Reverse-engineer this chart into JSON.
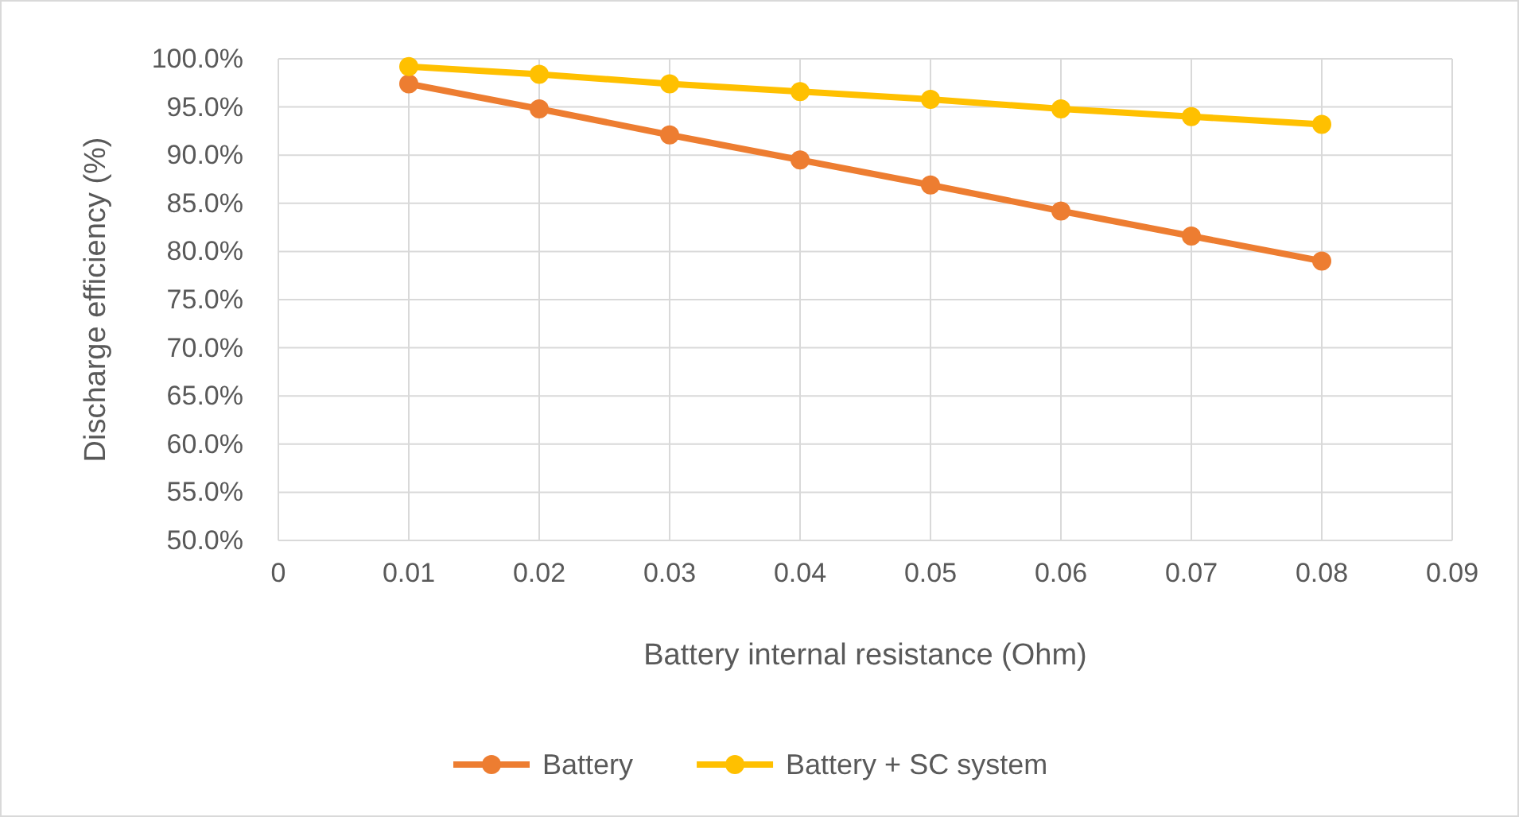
{
  "chart_data": {
    "type": "line",
    "xlabel": "Battery internal resistance (Ohm)",
    "ylabel": "Discharge efficiency (%)",
    "xlim": [
      0,
      0.09
    ],
    "xticks": [
      0,
      0.01,
      0.02,
      0.03,
      0.04,
      0.05,
      0.06,
      0.07,
      0.08,
      0.09
    ],
    "ylim": [
      50,
      100
    ],
    "yticks": [
      {
        "value": 50,
        "label": "50.0%"
      },
      {
        "value": 55,
        "label": "55.0%"
      },
      {
        "value": 60,
        "label": "60.0%"
      },
      {
        "value": 65,
        "label": "65.0%"
      },
      {
        "value": 70,
        "label": "70.0%"
      },
      {
        "value": 75,
        "label": "75.0%"
      },
      {
        "value": 80,
        "label": "80.0%"
      },
      {
        "value": 85,
        "label": "85.0%"
      },
      {
        "value": 90,
        "label": "90.0%"
      },
      {
        "value": 95,
        "label": "95.0%"
      },
      {
        "value": 100,
        "label": "100.0%"
      }
    ],
    "x": [
      0.01,
      0.02,
      0.03,
      0.04,
      0.05,
      0.06,
      0.07,
      0.08
    ],
    "series": [
      {
        "name": "Battery",
        "color": "#ed7d31",
        "values": [
          97.4,
          94.8,
          92.1,
          89.5,
          86.9,
          84.2,
          81.6,
          79.0
        ]
      },
      {
        "name": "Battery + SC system",
        "color": "#ffc000",
        "values": [
          99.2,
          98.4,
          97.4,
          96.6,
          95.8,
          94.8,
          94.0,
          93.2
        ]
      }
    ],
    "grid": true,
    "legend": "bottom",
    "marker": "circle",
    "line_style": "solid"
  }
}
